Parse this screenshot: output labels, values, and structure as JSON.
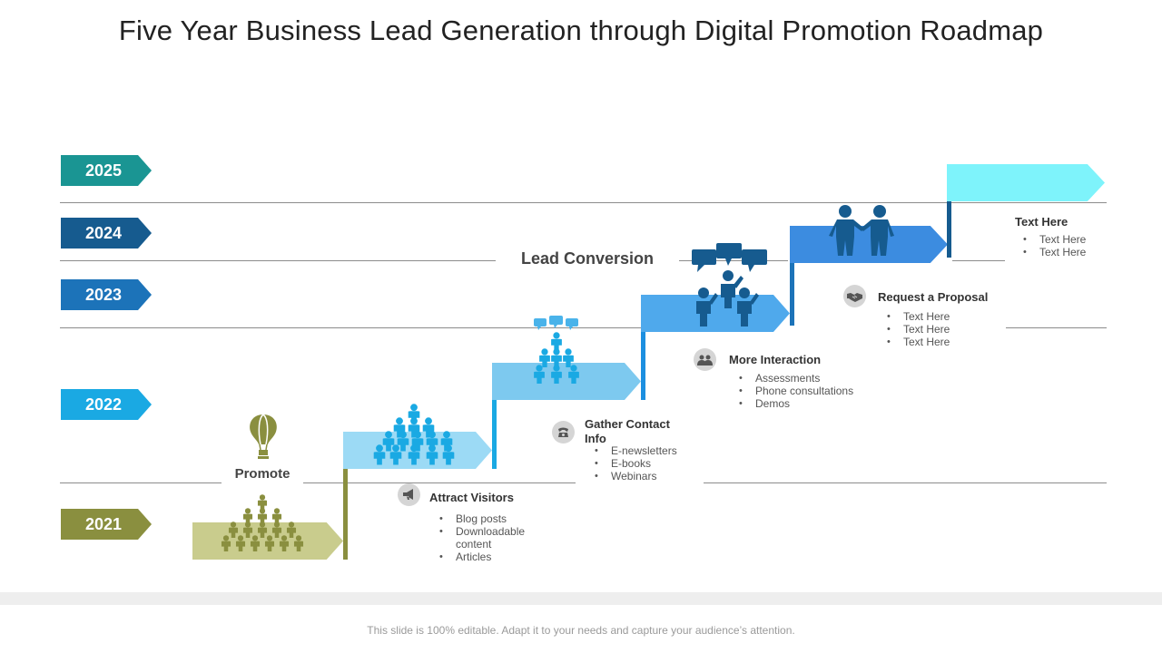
{
  "title": "Five Year Business Lead Generation through Digital Promotion Roadmap",
  "colors": {
    "y2025": "#1a9593",
    "y2024": "#165b8f",
    "y2023": "#1c73b9",
    "y2022": "#1aa9e3",
    "y2021": "#8a8f3f",
    "promote": "#c9cc8d",
    "attract": "#9cdaf5",
    "gather": "#7dc9ef",
    "interaction": "#4fa9ec",
    "proposal": "#3c8ce0",
    "final": "#7ef3fb"
  },
  "years": [
    "2025",
    "2024",
    "2023",
    "2022",
    "2021"
  ],
  "labels": {
    "promote": "Promote",
    "lead_conversion": "Lead Conversion"
  },
  "stages": {
    "attract": {
      "title": "Attract Visitors",
      "icon": "megaphone-icon",
      "items": [
        "Blog posts",
        "Downloadable content",
        "Articles"
      ]
    },
    "gather": {
      "title": "Gather Contact Info",
      "icon": "phone-icon",
      "items": [
        "E-newsletters",
        "E-books",
        "Webinars"
      ]
    },
    "interaction": {
      "title": "More Interaction",
      "icon": "people-icon",
      "items": [
        "Assessments",
        "Phone consultations",
        "Demos"
      ]
    },
    "proposal": {
      "title": "Request a Proposal",
      "icon": "handshake-icon",
      "items": [
        "Text Here",
        "Text Here",
        "Text Here"
      ]
    },
    "final": {
      "title": "Text Here",
      "items": [
        "Text Here",
        "Text Here"
      ]
    }
  },
  "footer": "This slide is 100% editable. Adapt it to your needs and capture your audience’s attention."
}
